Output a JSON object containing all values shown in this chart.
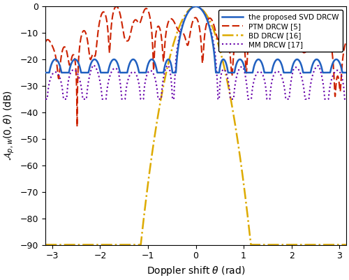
{
  "xlabel": "Doppler shift $\\theta$ (rad)",
  "ylabel": "$\\mathcal{A}_{p,w}(0, \\theta)$ (dB)",
  "xlim": [
    -3.14159,
    3.14159
  ],
  "ylim": [
    -90,
    0
  ],
  "yticks": [
    0,
    -10,
    -20,
    -30,
    -40,
    -50,
    -60,
    -70,
    -80,
    -90
  ],
  "xticks": [
    -3,
    -2,
    -1,
    0,
    1,
    2,
    3
  ],
  "legend": [
    "the proposed SVD DRCW",
    "PTM DRCW [5]",
    "BD DRCW [16]",
    "MM DRCW [17]"
  ],
  "colors": {
    "svd": "#2060c0",
    "ptm": "#cc2200",
    "bd": "#ddaa00",
    "mm": "#6600aa"
  },
  "linewidths": {
    "svd": 1.8,
    "ptm": 1.5,
    "bd": 1.8,
    "mm": 1.5
  }
}
